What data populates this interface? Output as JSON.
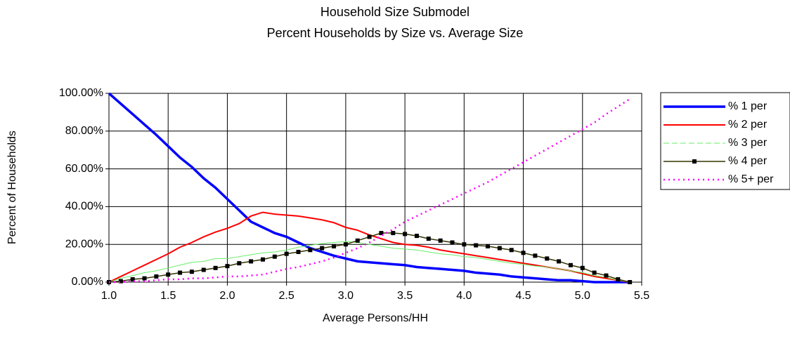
{
  "chart_data": {
    "type": "line",
    "title": "Household Size Submodel",
    "subtitle": "Percent Households by Size vs. Average Size",
    "x_label": "Average Persons/HH",
    "y_label": "Percent of Households",
    "x": [
      1.0,
      1.1,
      1.2,
      1.3,
      1.4,
      1.5,
      1.6,
      1.7,
      1.8,
      1.9,
      2.0,
      2.1,
      2.2,
      2.3,
      2.4,
      2.5,
      2.6,
      2.7,
      2.8,
      2.9,
      3.0,
      3.1,
      3.2,
      3.3,
      3.4,
      3.5,
      3.6,
      3.7,
      3.8,
      3.9,
      4.0,
      4.1,
      4.2,
      4.3,
      4.4,
      4.5,
      4.6,
      4.7,
      4.8,
      4.9,
      5.0,
      5.1,
      5.2,
      5.3,
      5.4
    ],
    "xlim": [
      1,
      5.5
    ],
    "xticks": [
      {
        "value": 1,
        "label": "1.0"
      },
      1.5,
      {
        "value": 2,
        "label": "2.0"
      },
      2.5,
      {
        "value": 3,
        "label": "3.0"
      },
      3.5,
      {
        "value": 4,
        "label": "4.0"
      },
      4.5,
      {
        "value": 5,
        "label": "5.0"
      },
      5.5
    ],
    "ylim": [
      0,
      100
    ],
    "yticks": [
      {
        "value": 0,
        "label": "0.00%"
      },
      {
        "value": 20,
        "label": "20.00%"
      },
      {
        "value": 40,
        "label": "40.00%"
      },
      {
        "value": 60,
        "label": "60.00%"
      },
      {
        "value": 80,
        "label": "80.00%"
      },
      {
        "value": 100,
        "label": "100.00%"
      }
    ],
    "grid": true,
    "legend": "right",
    "series": [
      {
        "name": "% 1 per",
        "color": "#0000ff",
        "values": [
          100,
          94.5,
          89,
          83.5,
          78,
          72,
          66,
          61,
          55,
          50,
          44,
          38,
          32,
          29,
          26,
          24,
          21,
          18,
          16,
          14,
          12.5,
          11,
          10.5,
          10,
          9.5,
          9,
          8,
          7.5,
          7,
          6.5,
          6,
          5,
          4.5,
          4,
          3,
          2.5,
          2,
          1.5,
          1,
          1,
          0.5,
          0,
          0,
          0,
          0
        ]
      },
      {
        "name": "% 2 per",
        "color": "#ff0000",
        "values": [
          0,
          3,
          6,
          9,
          12,
          15,
          18.5,
          21,
          24,
          26.5,
          28.5,
          31,
          35,
          37,
          36,
          35.5,
          35,
          34,
          33,
          31.5,
          29,
          27.5,
          25,
          23,
          21,
          20,
          19.5,
          18.5,
          17,
          16,
          15,
          14,
          13,
          12,
          11,
          10,
          9,
          8,
          7,
          6,
          4.5,
          3,
          2,
          1,
          0
        ]
      },
      {
        "name": "% 3 per",
        "color": "#66ee66",
        "values": [
          0,
          2,
          3.5,
          5,
          6,
          7.5,
          9,
          10.5,
          11,
          12.5,
          12.5,
          13.5,
          14.5,
          15.5,
          16,
          17,
          18.5,
          19.5,
          20.5,
          21,
          21.5,
          21,
          20,
          19,
          18,
          17.5,
          17,
          16,
          15,
          14.5,
          13.5,
          13,
          12,
          11,
          10,
          9.5,
          8.5,
          8,
          7,
          6,
          5,
          3.5,
          2.5,
          1,
          0
        ]
      },
      {
        "name": "% 4 per",
        "color": "#333300",
        "values": [
          0,
          0.5,
          1.5,
          2,
          3,
          4,
          5,
          5.5,
          6.5,
          7.5,
          8.5,
          10,
          11,
          12,
          13.5,
          15,
          16,
          17,
          18,
          19,
          20,
          22,
          24,
          26,
          26,
          25.5,
          24.5,
          23,
          22,
          21,
          20,
          19.5,
          19,
          18,
          17,
          15.5,
          14,
          12.5,
          11,
          9,
          7.5,
          5,
          3.5,
          1.5,
          0
        ]
      },
      {
        "name": "% 5+ per",
        "color": "#ff00ff",
        "values": [
          0,
          0,
          0.5,
          0.5,
          1,
          1.5,
          1.5,
          2,
          2,
          2.5,
          3,
          3,
          3.5,
          4,
          5.5,
          7,
          8,
          9.5,
          11,
          13,
          15.5,
          18,
          21,
          24.5,
          28,
          32,
          35,
          38,
          41,
          44,
          47,
          50,
          53,
          56.5,
          60,
          63.5,
          67,
          70.5,
          74,
          77.5,
          81,
          84.5,
          89,
          93,
          97
        ]
      }
    ]
  }
}
